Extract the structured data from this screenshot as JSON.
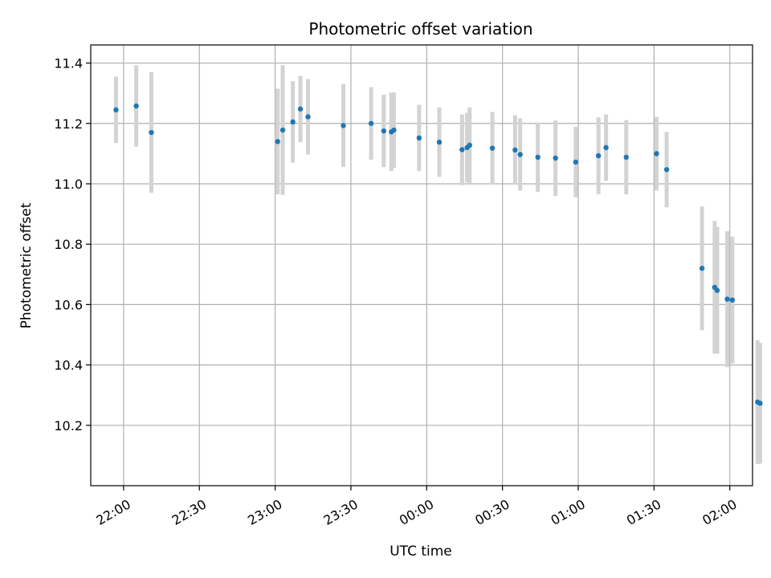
{
  "chart_data": {
    "type": "scatter",
    "title": "Photometric offset variation",
    "xlabel": "UTC time",
    "ylabel": "Photometric offset",
    "grid": true,
    "x_unit": "UTC time HH:MM (values after midnight shown as 24:xx / 25:xx)",
    "x_ticks": [
      "22:00",
      "22:30",
      "23:00",
      "23:30",
      "00:00",
      "00:30",
      "01:00",
      "01:30",
      "02:00"
    ],
    "y_ticks": [
      "10.2",
      "10.4",
      "10.6",
      "10.8",
      "11.0",
      "11.2",
      "11.4"
    ],
    "xlim": [
      "21:47",
      "26:09"
    ],
    "ylim": [
      10.0,
      11.46
    ],
    "marker_color": "#1f77b4",
    "errorbar_color": "#d3d3d3",
    "series": [
      {
        "points": [
          {
            "x": "21:57",
            "y": 11.245,
            "err": 0.11
          },
          {
            "x": "22:05",
            "y": 11.258,
            "err": 0.135
          },
          {
            "x": "22:11",
            "y": 11.17,
            "err": 0.2
          },
          {
            "x": "23:01",
            "y": 11.14,
            "err": 0.175
          },
          {
            "x": "23:03",
            "y": 11.178,
            "err": 0.215
          },
          {
            "x": "23:07",
            "y": 11.205,
            "err": 0.135
          },
          {
            "x": "23:10",
            "y": 11.248,
            "err": 0.11
          },
          {
            "x": "23:13",
            "y": 11.222,
            "err": 0.125
          },
          {
            "x": "23:27",
            "y": 11.193,
            "err": 0.137
          },
          {
            "x": "23:38",
            "y": 11.2,
            "err": 0.12
          },
          {
            "x": "23:43",
            "y": 11.175,
            "err": 0.12
          },
          {
            "x": "23:46",
            "y": 11.172,
            "err": 0.13
          },
          {
            "x": "23:47",
            "y": 11.178,
            "err": 0.125
          },
          {
            "x": "23:57",
            "y": 11.152,
            "err": 0.11
          },
          {
            "x": "24:05",
            "y": 11.138,
            "err": 0.115
          },
          {
            "x": "24:14",
            "y": 11.113,
            "err": 0.117
          },
          {
            "x": "24:16",
            "y": 11.12,
            "err": 0.115
          },
          {
            "x": "24:17",
            "y": 11.128,
            "err": 0.125
          },
          {
            "x": "24:26",
            "y": 11.118,
            "err": 0.12
          },
          {
            "x": "24:35",
            "y": 11.112,
            "err": 0.115
          },
          {
            "x": "24:37",
            "y": 11.097,
            "err": 0.12
          },
          {
            "x": "24:44",
            "y": 11.088,
            "err": 0.115
          },
          {
            "x": "24:51",
            "y": 11.085,
            "err": 0.125
          },
          {
            "x": "24:59",
            "y": 11.072,
            "err": 0.117
          },
          {
            "x": "25:08",
            "y": 11.093,
            "err": 0.127
          },
          {
            "x": "25:11",
            "y": 11.12,
            "err": 0.11
          },
          {
            "x": "25:19",
            "y": 11.088,
            "err": 0.123
          },
          {
            "x": "25:31",
            "y": 11.1,
            "err": 0.122
          },
          {
            "x": "25:35",
            "y": 11.047,
            "err": 0.125
          },
          {
            "x": "25:49",
            "y": 10.72,
            "err": 0.205
          },
          {
            "x": "25:54",
            "y": 10.657,
            "err": 0.22
          },
          {
            "x": "25:55",
            "y": 10.647,
            "err": 0.21
          },
          {
            "x": "25:59",
            "y": 10.618,
            "err": 0.225
          },
          {
            "x": "26:01",
            "y": 10.615,
            "err": 0.21
          },
          {
            "x": "26:11",
            "y": 10.277,
            "err": 0.205
          },
          {
            "x": "26:12",
            "y": 10.273,
            "err": 0.2
          }
        ]
      }
    ]
  }
}
